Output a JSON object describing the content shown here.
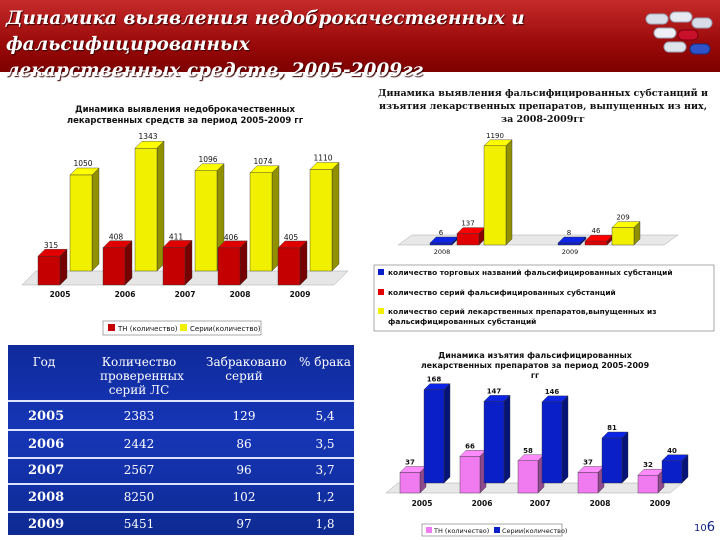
{
  "header": {
    "title_line1": "Динамика выявления недоброкачественных и фальсифицированных",
    "title_line2": "лекарственных средств, 2005-2009гг"
  },
  "page_number": {
    "main": "6",
    "sub": "10"
  },
  "chart_data": [
    {
      "type": "bar",
      "title": "Динамика выявления недоброкачественных лекарственных средств за период 2005-2009 гг",
      "categories": [
        "2005",
        "2006",
        "2007",
        "2008",
        "2009"
      ],
      "series": [
        {
          "name": "ТН (количество)",
          "color": "#c40000",
          "values": [
            315,
            408,
            411,
            406,
            405
          ]
        },
        {
          "name": "Серии(количество)",
          "color": "#f0f000",
          "values": [
            1050,
            1343,
            1096,
            1074,
            1110
          ]
        }
      ],
      "legend_position": "bottom"
    },
    {
      "type": "bar",
      "title": "Динамика выявления фальсифицированных субстанций и изъятия лекарственных препаратов, выпущенных из них, за 2008-2009гг",
      "categories": [
        "2008",
        "2009"
      ],
      "series": [
        {
          "name": "количество торговых названий фальсифицированных субстанций",
          "color": "#0a1fc8",
          "values": [
            6,
            8
          ]
        },
        {
          "name": "количество серий фальсифицированных субстанций",
          "color": "#e00000",
          "values": [
            137,
            46
          ]
        },
        {
          "name": "количество серий лекарственных препаратов,выпущенных из фальсифицированных субстанций",
          "color": "#f0f000",
          "values": [
            1190,
            209
          ]
        }
      ],
      "legend_position": "bottom"
    },
    {
      "type": "bar",
      "title": "Динамика изъятия фальсифицированных лекарственных препаратов за период 2005-2009 гг",
      "categories": [
        "2005",
        "2006",
        "2007",
        "2008",
        "2009"
      ],
      "series": [
        {
          "name": "ТН (количество)",
          "color": "#f07af0",
          "values": [
            37,
            66,
            58,
            37,
            32
          ]
        },
        {
          "name": "Серии(количество)",
          "color": "#0a1fc8",
          "values": [
            168,
            147,
            146,
            81,
            40
          ]
        }
      ],
      "legend_position": "bottom"
    },
    {
      "type": "table",
      "columns": [
        "Год",
        "Количество проверенных серий ЛС",
        "Забраковано серий",
        "% брака"
      ],
      "rows": [
        [
          "2005",
          "2383",
          "129",
          "5,4"
        ],
        [
          "2006",
          "2442",
          "86",
          "3,5"
        ],
        [
          "2007",
          "2567",
          "96",
          "3,7"
        ],
        [
          "2008",
          "8250",
          "102",
          "1,2"
        ],
        [
          "2009",
          "5451",
          "97",
          "1,8"
        ]
      ]
    }
  ]
}
